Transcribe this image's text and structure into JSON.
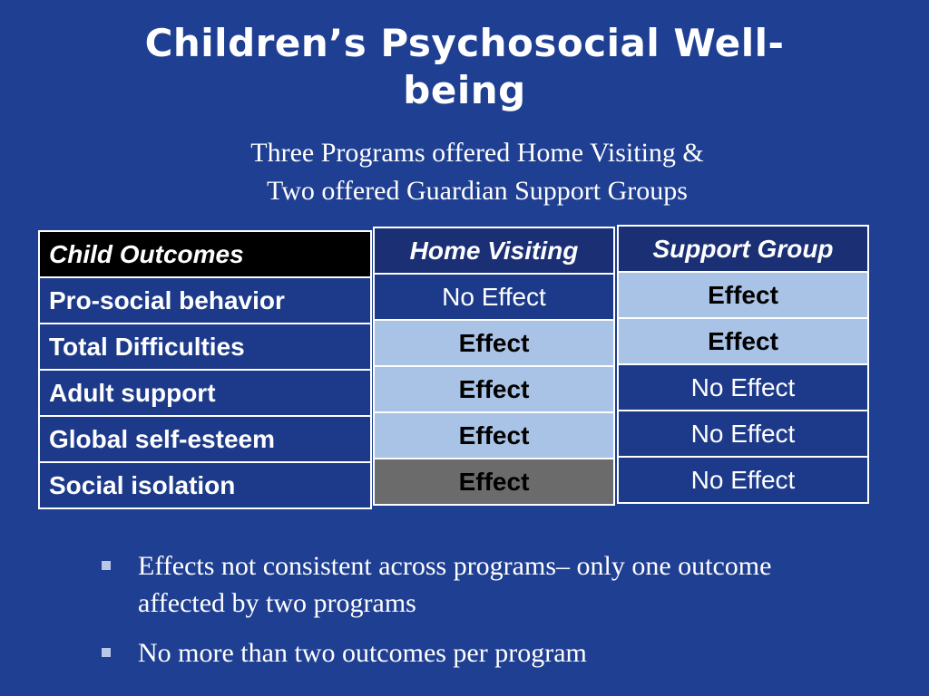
{
  "slide": {
    "title_line1": "Children’s Psychosocial Well-",
    "title_line2": "being",
    "subtitle_line1": "Three Programs offered Home Visiting &",
    "subtitle_line2": "Two offered Guardian Support Groups"
  },
  "table": {
    "outcomes_header": "Child Outcomes",
    "home_visiting_header": "Home Visiting",
    "support_group_header": "Support Group",
    "rows": [
      {
        "outcome": "Pro-social behavior",
        "home_visiting": "No Effect",
        "support_group": "Effect"
      },
      {
        "outcome": "Total Difficulties",
        "home_visiting": "Effect",
        "support_group": "Effect"
      },
      {
        "outcome": "Adult support",
        "home_visiting": "Effect",
        "support_group": "No Effect"
      },
      {
        "outcome": "Global self-esteem",
        "home_visiting": "Effect",
        "support_group": "No Effect"
      },
      {
        "outcome": "Social isolation",
        "home_visiting": "Effect",
        "support_group": "No Effect"
      }
    ]
  },
  "bullets": [
    "Effects not consistent across programs– only one outcome affected by two programs",
    "No more than two outcomes per program"
  ],
  "colors": {
    "background": "#1f3f92",
    "effect_cell": "#a9c3e6",
    "effect_cell_gray": "#6b6b6b",
    "header_black": "#000000"
  }
}
